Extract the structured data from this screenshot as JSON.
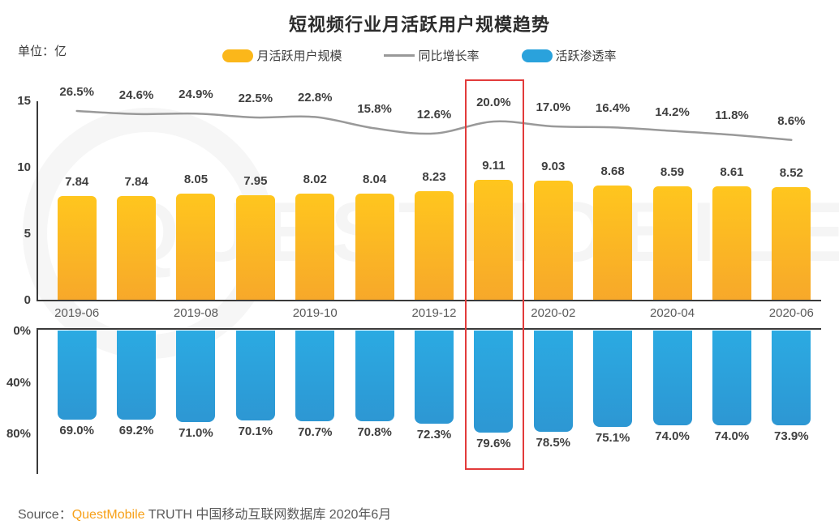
{
  "title": "短视频行业月活跃用户规模趋势",
  "unit_label": "单位：亿",
  "legend": {
    "items": [
      {
        "label": "月活跃用户规模",
        "type": "bar",
        "color": "#FBB71A"
      },
      {
        "label": "同比增长率",
        "type": "line",
        "color": "#999999"
      },
      {
        "label": "活跃渗透率",
        "type": "bar",
        "color": "#2AA2DC"
      }
    ]
  },
  "colors": {
    "bar_yellow_top": "#FFC61E",
    "bar_yellow_bottom": "#F7A82A",
    "bar_blue_top": "#2BAAE2",
    "bar_blue_bottom": "#2D97D3",
    "growth_line": "#999999",
    "highlight_red": "#E23B3B",
    "brand_orange": "#F7A11A"
  },
  "chart_data": {
    "type": "bar",
    "x_tick_labels": [
      "2019-06",
      "2019-08",
      "2019-10",
      "2019-12",
      "2020-02",
      "2020-04",
      "2020-06"
    ],
    "x_tick_every": 2,
    "n_points": 13,
    "highlight_index": 7,
    "series": [
      {
        "name": "月活跃用户规模",
        "type": "bar",
        "unit": "亿",
        "axis": "top",
        "ylim": [
          0,
          15
        ],
        "yticks": [
          15,
          10,
          5,
          0
        ],
        "values": [
          7.84,
          7.84,
          8.05,
          7.95,
          8.02,
          8.04,
          8.23,
          9.11,
          9.03,
          8.68,
          8.59,
          8.61,
          8.52
        ]
      },
      {
        "name": "同比增长率",
        "type": "line",
        "unit": "%",
        "values": [
          26.5,
          24.6,
          24.9,
          22.5,
          22.8,
          15.8,
          12.6,
          20.0,
          17.0,
          16.4,
          14.2,
          11.8,
          8.6
        ]
      },
      {
        "name": "活跃渗透率",
        "type": "bar",
        "unit": "%",
        "axis": "bottom-inverted",
        "ylim": [
          0,
          80
        ],
        "yticks": [
          "0%",
          "40%",
          "80%"
        ],
        "values": [
          69.0,
          69.2,
          71.0,
          70.1,
          70.7,
          70.8,
          72.3,
          79.6,
          78.5,
          75.1,
          74.0,
          74.0,
          73.9
        ]
      }
    ]
  },
  "watermark": "QUESTMOBILE",
  "source": {
    "prefix": "Source：",
    "brand": "QuestMobile",
    "suffix": " TRUTH 中国移动互联网数据库 2020年6月"
  }
}
